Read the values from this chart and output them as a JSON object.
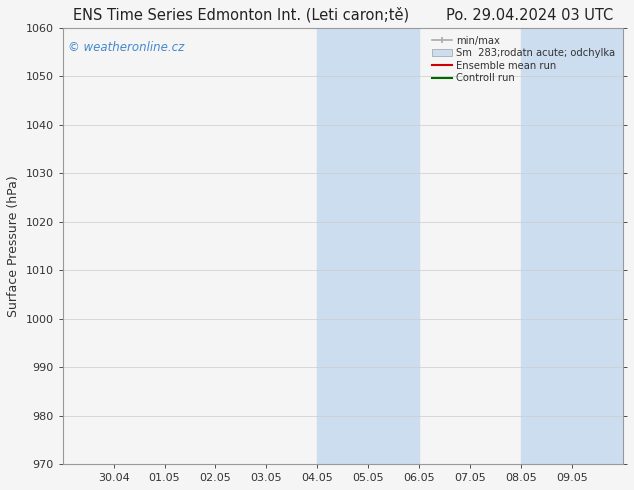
{
  "title_left": "ENS Time Series Edmonton Int. (Leti caron;tě)",
  "title_right": "Po. 29.04.2024 03 UTC",
  "ylabel": "Surface Pressure (hPa)",
  "ylim": [
    970,
    1060
  ],
  "yticks": [
    970,
    980,
    990,
    1000,
    1010,
    1020,
    1030,
    1040,
    1050,
    1060
  ],
  "xlim": [
    0,
    11
  ],
  "xtick_positions": [
    1,
    2,
    3,
    4,
    5,
    6,
    7,
    8,
    9,
    10
  ],
  "xtick_labels": [
    "30.04",
    "01.05",
    "02.05",
    "03.05",
    "04.05",
    "05.05",
    "06.05",
    "07.05",
    "08.05",
    "09.05"
  ],
  "background_color": "#f5f5f5",
  "plot_bg_color": "#f5f5f5",
  "shaded_regions": [
    {
      "x_start": 5.0,
      "x_end": 7.0,
      "color": "#ccddf0",
      "alpha": 1.0
    },
    {
      "x_start": 9.0,
      "x_end": 11.0,
      "color": "#ccddf0",
      "alpha": 1.0
    }
  ],
  "watermark_text": "© weatheronline.cz",
  "watermark_color": "#4488cc",
  "legend_labels": [
    "min/max",
    "Sm  283;rodatn acute; odchylka",
    "Ensemble mean run",
    "Controll run"
  ],
  "grid_color": "#cccccc",
  "spine_color": "#999999",
  "tick_color": "#333333",
  "title_fontsize": 10.5,
  "axis_label_fontsize": 9,
  "tick_fontsize": 8
}
